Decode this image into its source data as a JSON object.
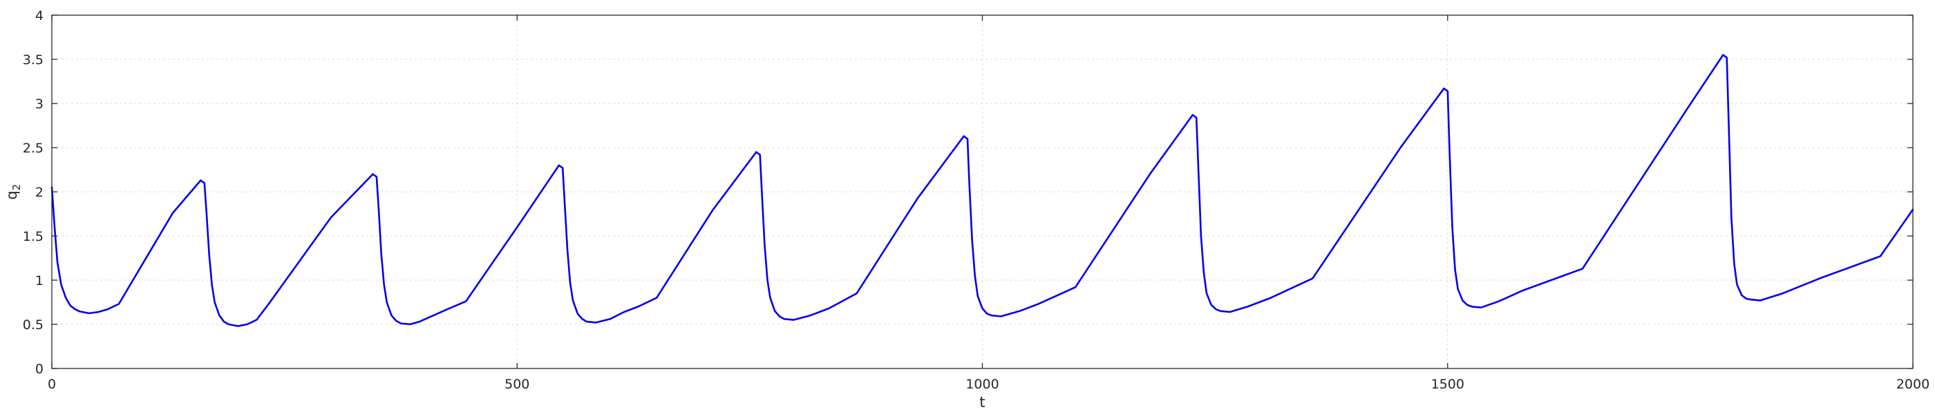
{
  "chart_data": {
    "type": "line",
    "xlabel": "t",
    "ylabel": "q",
    "ylabel_sub": "2",
    "xlim": [
      0,
      2000
    ],
    "ylim": [
      0,
      4
    ],
    "xticks": [
      0,
      500,
      1000,
      1500,
      2000
    ],
    "yticks": [
      0,
      0.5,
      1,
      1.5,
      2,
      2.5,
      3,
      3.5,
      4
    ],
    "xtick_labels": [
      "0",
      "500",
      "1000",
      "1500",
      "2000"
    ],
    "ytick_labels": [
      "0",
      "0.5",
      "1",
      "1.5",
      "2",
      "2.5",
      "3",
      "3.5",
      "4"
    ],
    "grid": true,
    "colors": {
      "line": "#0000ee",
      "axis": "#262626",
      "grid": "#d9d9d9"
    },
    "series": [
      {
        "x": [
          0,
          3,
          6,
          10,
          15,
          20,
          25,
          30,
          40,
          50,
          60,
          72,
          130,
          160,
          164,
          166,
          169,
          172,
          175,
          180,
          185,
          190,
          200,
          210,
          220,
          233,
          300,
          345,
          349,
          351,
          354,
          357,
          360,
          365,
          370,
          375,
          385,
          395,
          410,
          425,
          445,
          500,
          545,
          549,
          551,
          554,
          557,
          560,
          565,
          570,
          575,
          585,
          600,
          615,
          630,
          650,
          710,
          757,
          761,
          763,
          766,
          769,
          772,
          777,
          782,
          787,
          797,
          815,
          835,
          865,
          930,
          980,
          984,
          986,
          989,
          992,
          995,
          1000,
          1005,
          1010,
          1020,
          1040,
          1060,
          1100,
          1180,
          1226,
          1230,
          1232,
          1235,
          1238,
          1241,
          1246,
          1251,
          1256,
          1266,
          1285,
          1310,
          1355,
          1450,
          1496,
          1500,
          1502,
          1505,
          1508,
          1511,
          1516,
          1521,
          1526,
          1536,
          1555,
          1580,
          1645,
          1760,
          1796,
          1800,
          1802,
          1805,
          1808,
          1811,
          1816,
          1821,
          1826,
          1836,
          1860,
          1900,
          1965,
          2000
        ],
        "y": [
          2.05,
          1.6,
          1.2,
          0.95,
          0.8,
          0.71,
          0.67,
          0.645,
          0.625,
          0.64,
          0.67,
          0.73,
          1.76,
          2.13,
          2.1,
          1.8,
          1.3,
          0.95,
          0.75,
          0.6,
          0.53,
          0.5,
          0.48,
          0.5,
          0.55,
          0.73,
          1.71,
          2.2,
          2.17,
          1.85,
          1.3,
          0.95,
          0.75,
          0.6,
          0.54,
          0.51,
          0.5,
          0.53,
          0.6,
          0.67,
          0.76,
          1.6,
          2.3,
          2.27,
          1.9,
          1.35,
          0.97,
          0.77,
          0.62,
          0.56,
          0.53,
          0.52,
          0.56,
          0.64,
          0.7,
          0.8,
          1.79,
          2.45,
          2.42,
          2.0,
          1.4,
          1.0,
          0.8,
          0.65,
          0.59,
          0.56,
          0.55,
          0.6,
          0.68,
          0.85,
          1.92,
          2.63,
          2.6,
          2.1,
          1.45,
          1.05,
          0.82,
          0.68,
          0.62,
          0.6,
          0.59,
          0.65,
          0.73,
          0.92,
          2.2,
          2.87,
          2.84,
          2.3,
          1.5,
          1.08,
          0.85,
          0.72,
          0.67,
          0.65,
          0.64,
          0.7,
          0.8,
          1.02,
          2.51,
          3.17,
          3.14,
          2.5,
          1.6,
          1.12,
          0.9,
          0.77,
          0.72,
          0.7,
          0.69,
          0.76,
          0.88,
          1.13,
          2.98,
          3.55,
          3.52,
          2.8,
          1.7,
          1.18,
          0.95,
          0.83,
          0.79,
          0.78,
          0.77,
          0.85,
          1.02,
          1.27,
          1.8
        ]
      }
    ]
  }
}
